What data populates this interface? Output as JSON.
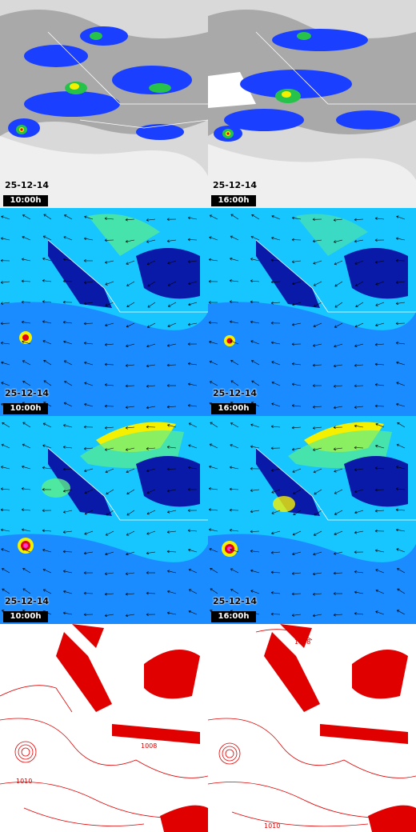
{
  "rows": [
    {
      "name": "satellite-cloud",
      "panels": [
        {
          "date": "25-12-14",
          "time": "10:00h"
        },
        {
          "date": "25-12-14",
          "time": "16:00h"
        }
      ]
    },
    {
      "name": "wind-low-level",
      "panels": [
        {
          "date": "25-12-14",
          "time": "10:00h"
        },
        {
          "date": "25-12-14",
          "time": "16:00h"
        }
      ]
    },
    {
      "name": "wind-upper-level",
      "panels": [
        {
          "date": "25-12-14",
          "time": "10:00h"
        },
        {
          "date": "25-12-14",
          "time": "16:00h"
        }
      ]
    },
    {
      "name": "pressure-isobars",
      "panels": [
        {
          "date": "",
          "time": "",
          "labels": [
            "1010",
            "1008"
          ]
        },
        {
          "date": "",
          "time": "",
          "labels": [
            "1008",
            "1010"
          ]
        }
      ]
    }
  ],
  "colors": {
    "cloud_gray": "#bdbdbd",
    "rain_blue": "#1a3fff",
    "rain_green": "#27c24a",
    "rain_yellow": "#f5f000",
    "rain_red": "#e0001a",
    "wind_cyan": "#17c5ff",
    "wind_deep": "#0a1aa8",
    "wind_green": "#5df08a",
    "isobar_red": "#e00000"
  }
}
